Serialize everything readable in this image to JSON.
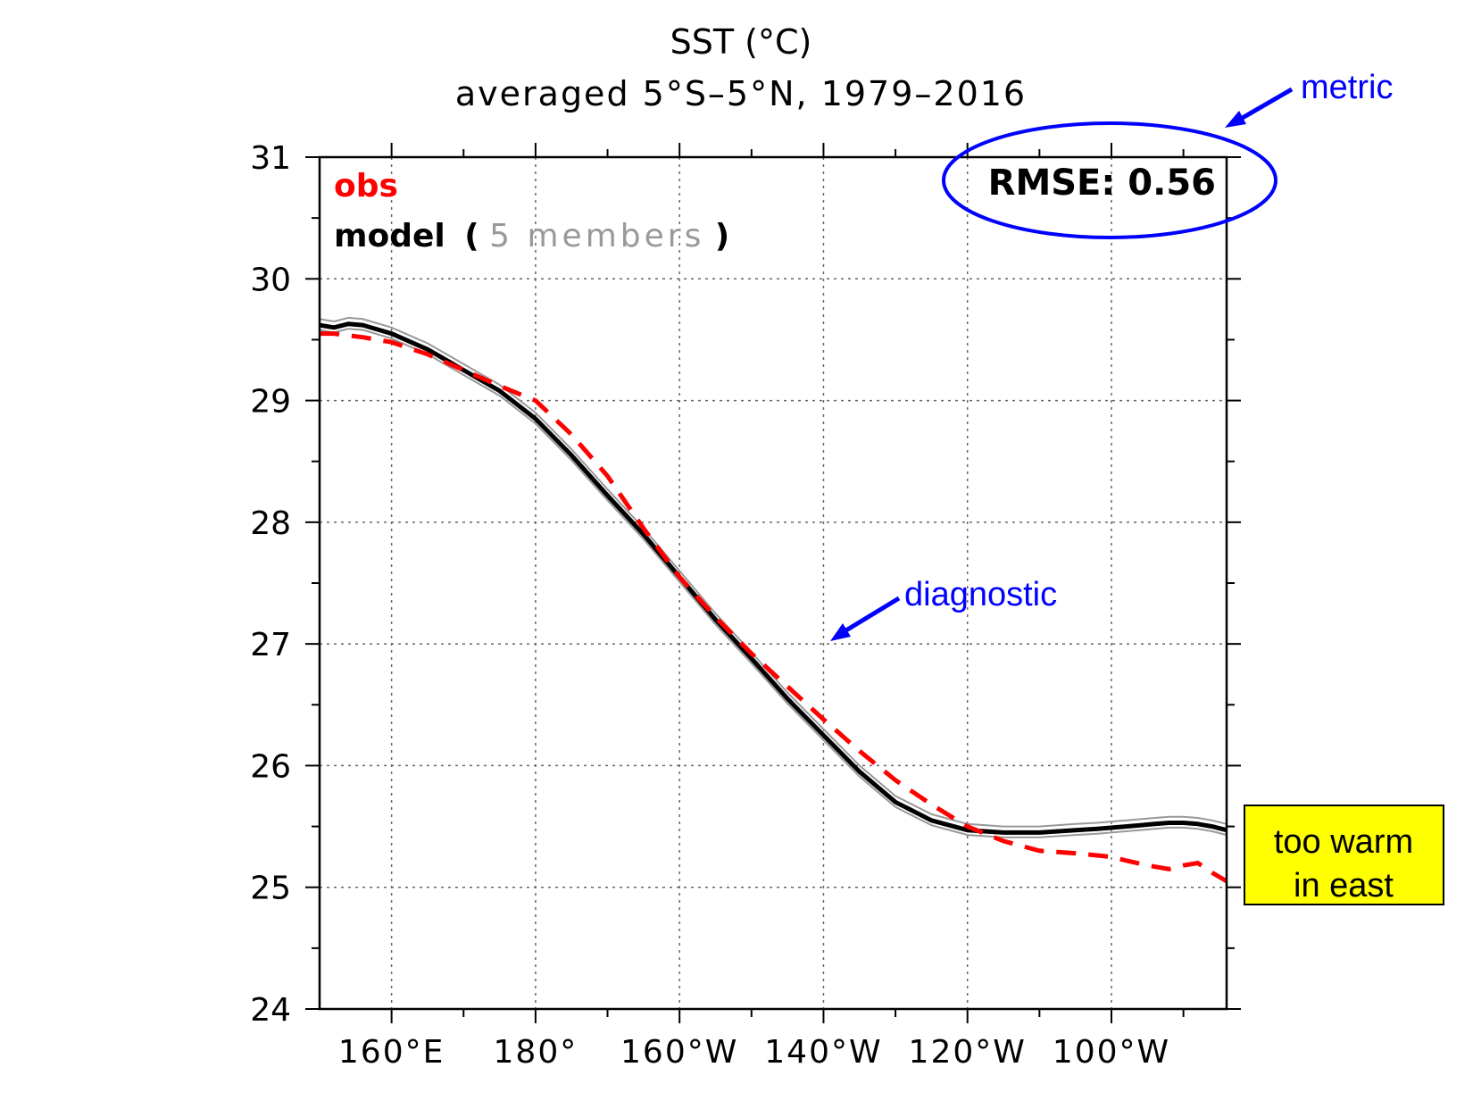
{
  "chart_data": {
    "type": "line",
    "title": "SST (°C)",
    "subtitle": "averaged 5°S–5°N, 1979–2016",
    "xlabel": "",
    "ylabel": "",
    "xlim": [
      150,
      276
    ],
    "ylim": [
      24,
      31
    ],
    "x_ticks": [
      {
        "value": 160,
        "label": "160°E"
      },
      {
        "value": 180,
        "label": "180°"
      },
      {
        "value": 200,
        "label": "160°W"
      },
      {
        "value": 220,
        "label": "140°W"
      },
      {
        "value": 240,
        "label": "120°W"
      },
      {
        "value": 260,
        "label": "100°W"
      }
    ],
    "y_ticks": [
      24,
      25,
      26,
      27,
      28,
      29,
      30,
      31
    ],
    "grid": true,
    "legend": {
      "placement": "top-left",
      "obs_label": "obs",
      "model_label": "model",
      "open_paren": "(",
      "members_label": "5 members",
      "close_paren": ")"
    },
    "colors": {
      "obs": "#ff0000",
      "model": "#000000",
      "members": "#999999",
      "annotation": "#0000ff",
      "note_bg": "#ffff00"
    },
    "series": [
      {
        "name": "obs",
        "style": "dashed",
        "x": [
          150,
          152,
          156,
          160,
          165,
          170,
          175,
          180,
          185,
          190,
          195,
          200,
          205,
          210,
          215,
          220,
          225,
          230,
          235,
          240,
          245,
          250,
          255,
          260,
          262,
          265,
          268,
          270,
          272,
          274,
          276
        ],
        "y": [
          29.55,
          29.55,
          29.52,
          29.48,
          29.38,
          29.25,
          29.12,
          29.0,
          28.72,
          28.38,
          27.95,
          27.55,
          27.22,
          26.92,
          26.65,
          26.38,
          26.12,
          25.88,
          25.68,
          25.5,
          25.38,
          25.3,
          25.28,
          25.25,
          25.22,
          25.18,
          25.15,
          25.18,
          25.2,
          25.12,
          25.05
        ]
      },
      {
        "name": "model",
        "style": "solid",
        "x": [
          150,
          152,
          154,
          156,
          160,
          165,
          170,
          175,
          180,
          185,
          190,
          195,
          200,
          205,
          210,
          215,
          220,
          225,
          230,
          235,
          240,
          245,
          250,
          255,
          258,
          262,
          266,
          268,
          270,
          272,
          274,
          276
        ],
        "y": [
          29.62,
          29.6,
          29.63,
          29.62,
          29.55,
          29.42,
          29.25,
          29.08,
          28.85,
          28.55,
          28.22,
          27.9,
          27.55,
          27.2,
          26.88,
          26.55,
          26.25,
          25.95,
          25.7,
          25.55,
          25.47,
          25.45,
          25.45,
          25.47,
          25.48,
          25.5,
          25.52,
          25.53,
          25.53,
          25.52,
          25.5,
          25.47
        ]
      }
    ],
    "annotations": {
      "rmse": "RMSE: 0.56",
      "metric": "metric",
      "diagnostic": "diagnostic",
      "note_line1": "too warm",
      "note_line2": "in east"
    }
  }
}
